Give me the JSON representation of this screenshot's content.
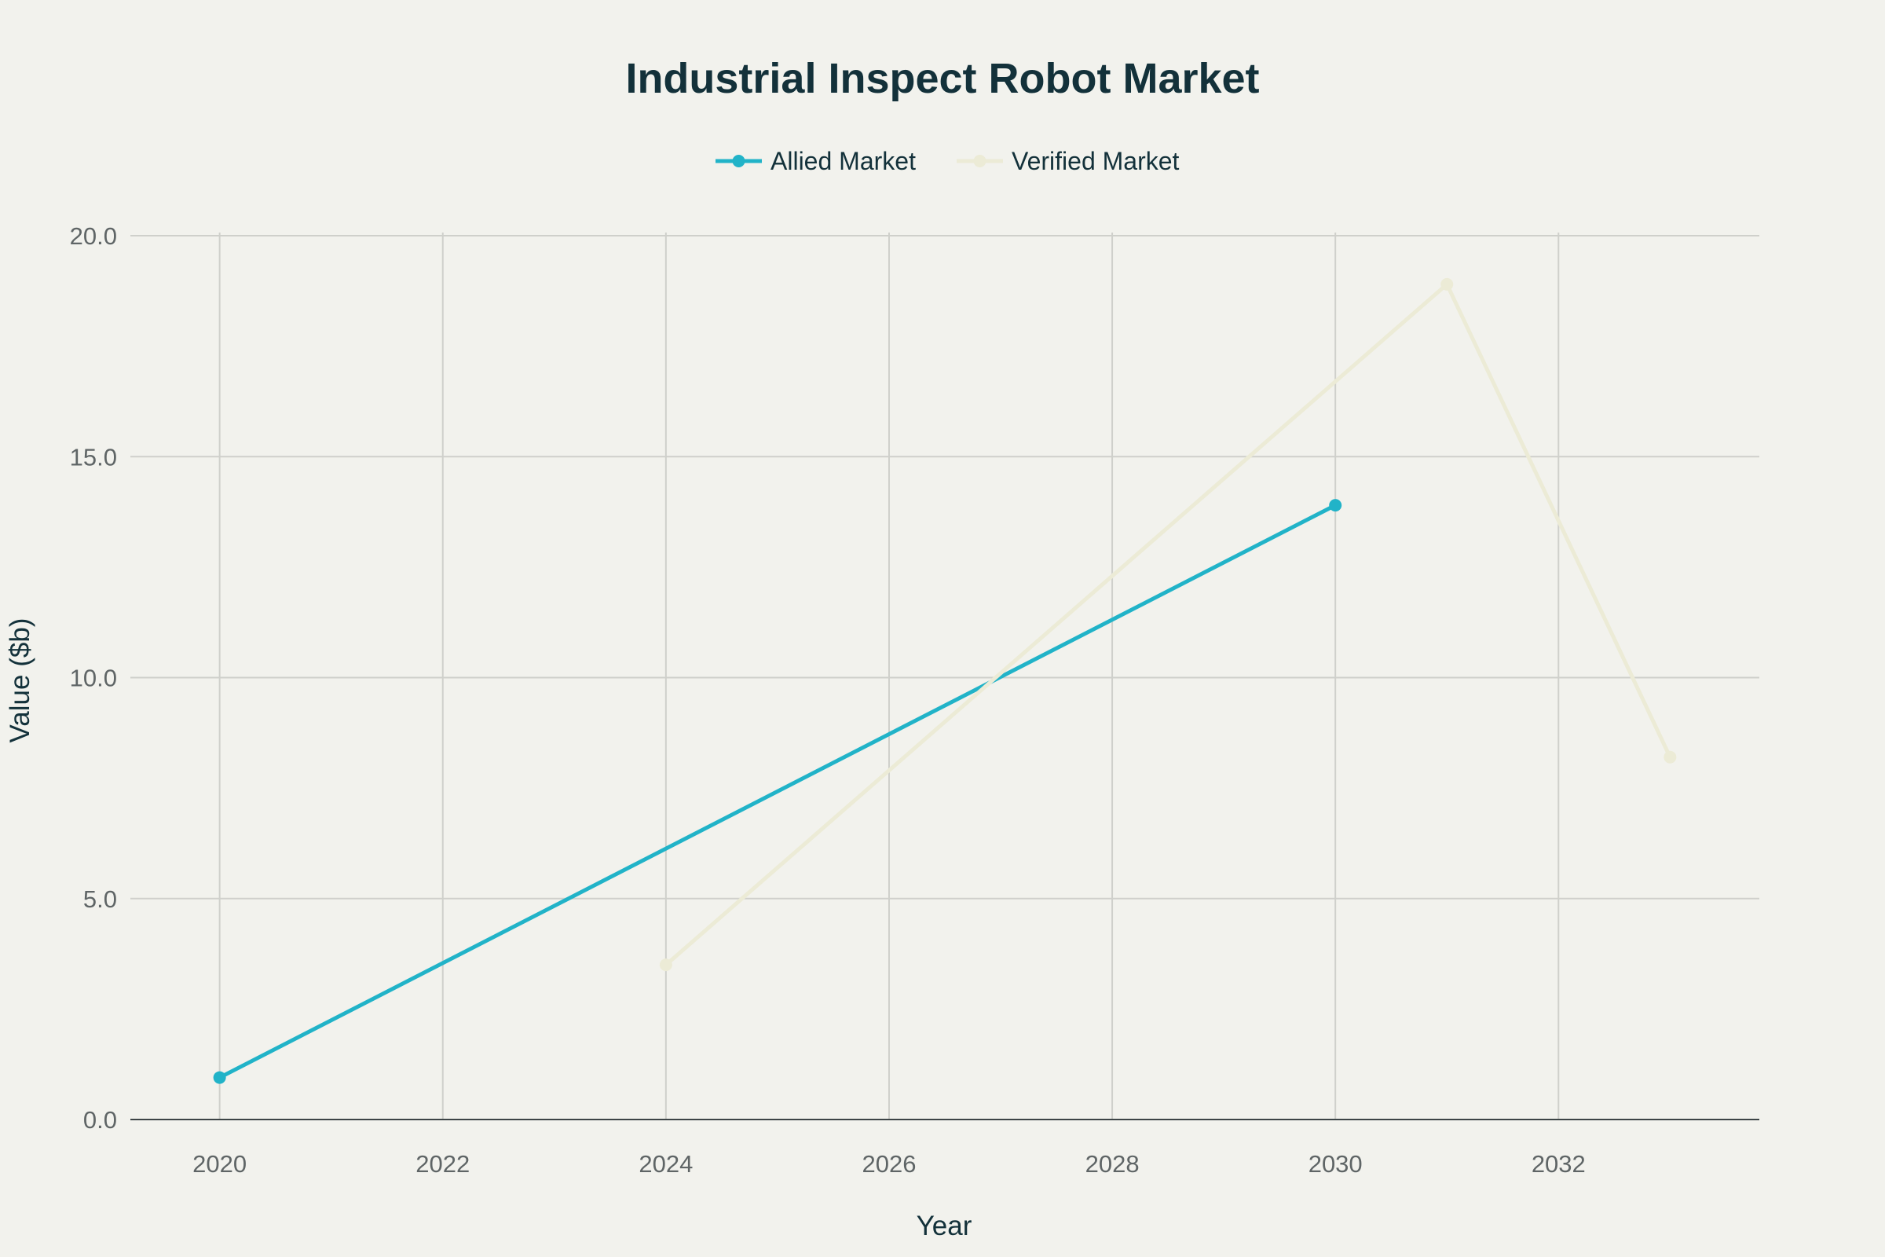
{
  "chart_data": {
    "type": "line",
    "title": "Industrial Inspect Robot Market",
    "xlabel": "Year",
    "ylabel": "Value ($b)",
    "xlim": [
      2019.2,
      2033.8
    ],
    "ylim": [
      0,
      20
    ],
    "x_ticks": [
      "2020",
      "2022",
      "2024",
      "2026",
      "2028",
      "2030",
      "2032"
    ],
    "y_ticks": [
      "0.0",
      "5.0",
      "10.0",
      "15.0",
      "20.0"
    ],
    "grid": true,
    "legend_position": "top-center",
    "series": [
      {
        "name": "Allied Market",
        "color": "#21b3c8",
        "points": [
          {
            "x": 2020,
            "y": 0.95
          },
          {
            "x": 2030,
            "y": 13.9
          }
        ]
      },
      {
        "name": "Verified Market",
        "color": "#ecebd6",
        "points": [
          {
            "x": 2024,
            "y": 3.5
          },
          {
            "x": 2031,
            "y": 18.9
          },
          {
            "x": 2033,
            "y": 8.2
          }
        ]
      }
    ]
  }
}
